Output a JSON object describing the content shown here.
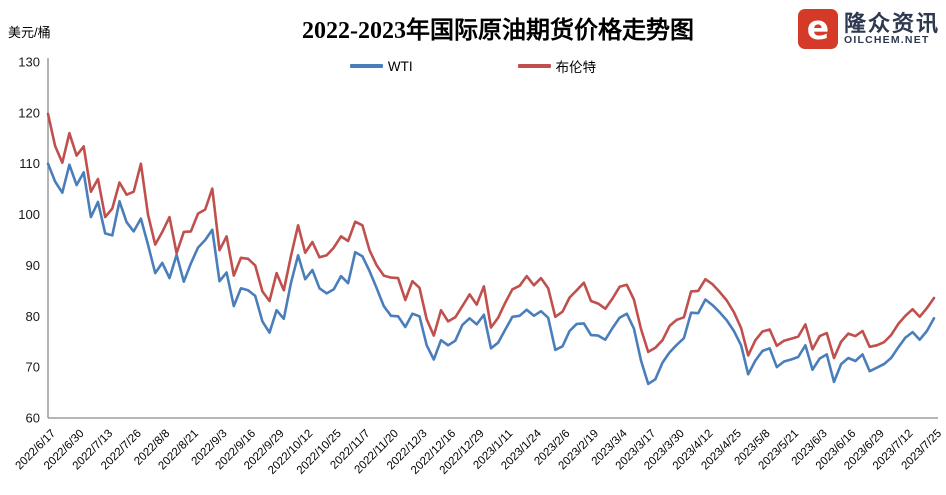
{
  "header": {
    "unit_label": "美元/桶",
    "title": "2022-2023年国际原油期货价格走势图",
    "logo": {
      "icon_glyph": "e",
      "brand": "隆众资讯",
      "domain": "OILCHEM.NET",
      "icon_color": "#d43a27",
      "text_color": "#2e3950"
    }
  },
  "chart_data": {
    "type": "line",
    "title": "2022-2023年国际原油期货价格走势图",
    "xlabel": "",
    "ylabel": "美元/桶",
    "ylim": [
      60,
      130
    ],
    "ytick_step": 10,
    "grid": false,
    "legend_position": "top-center",
    "axis_color": "#8a8a8a",
    "points_per_tick_interval": 4,
    "categories": [
      "2022/6/17",
      "2022/6/30",
      "2022/7/13",
      "2022/7/26",
      "2022/8/8",
      "2022/8/21",
      "2022/9/3",
      "2022/9/16",
      "2022/9/29",
      "2022/10/12",
      "2022/10/25",
      "2022/11/7",
      "2022/11/20",
      "2022/12/3",
      "2022/12/16",
      "2022/12/29",
      "2023/1/11",
      "2023/1/24",
      "2023/2/6",
      "2023/2/19",
      "2023/3/4",
      "2023/3/17",
      "2023/3/30",
      "2023/4/12",
      "2023/4/25",
      "2023/5/8",
      "2023/5/21",
      "2023/6/3",
      "2023/6/16",
      "2023/6/29",
      "2023/7/12",
      "2023/7/25"
    ],
    "series": [
      {
        "name": "WTI",
        "color": "#4a7ebb",
        "values": [
          110.0,
          106.5,
          104.3,
          109.8,
          105.8,
          108.3,
          99.5,
          102.5,
          96.3,
          95.9,
          102.6,
          98.5,
          96.7,
          99.2,
          94.1,
          88.5,
          90.5,
          87.5,
          92.1,
          86.8,
          90.4,
          93.5,
          95.0,
          97.0,
          86.9,
          88.6,
          82.0,
          85.5,
          85.1,
          84.0,
          79.0,
          76.8,
          81.2,
          79.5,
          86.5,
          92.0,
          87.3,
          89.1,
          85.5,
          84.5,
          85.3,
          87.9,
          86.5,
          92.6,
          91.8,
          88.9,
          85.5,
          82.0,
          80.1,
          80.0,
          77.9,
          80.5,
          80.0,
          74.3,
          71.5,
          75.3,
          74.3,
          75.2,
          78.3,
          79.6,
          78.4,
          80.3,
          73.7,
          74.8,
          77.4,
          79.9,
          80.1,
          81.3,
          80.1,
          81.0,
          79.7,
          73.4,
          74.1,
          77.1,
          78.5,
          78.6,
          76.3,
          76.2,
          75.4,
          77.7,
          79.7,
          80.5,
          77.6,
          71.3,
          66.7,
          67.6,
          70.9,
          72.9,
          74.4,
          75.7,
          80.7,
          80.6,
          83.3,
          82.2,
          80.8,
          79.2,
          77.1,
          74.3,
          68.6,
          71.3,
          73.2,
          73.7,
          70.0,
          71.1,
          71.5,
          72.0,
          74.3,
          69.5,
          71.7,
          72.5,
          67.1,
          70.6,
          71.8,
          71.2,
          72.5,
          69.2,
          69.9,
          70.6,
          71.8,
          73.9,
          75.8,
          76.9,
          75.4,
          77.1,
          79.6
        ]
      },
      {
        "name": "布伦特",
        "color": "#c0504d",
        "values": [
          119.8,
          113.5,
          110.2,
          116.0,
          111.6,
          113.4,
          104.5,
          107.0,
          99.5,
          101.2,
          106.3,
          103.9,
          104.5,
          110.0,
          100.0,
          94.1,
          96.6,
          99.5,
          92.4,
          96.6,
          96.7,
          100.2,
          101.0,
          105.1,
          93.0,
          95.7,
          88.0,
          91.5,
          91.3,
          90.0,
          84.9,
          83.0,
          88.5,
          85.1,
          91.8,
          97.9,
          92.5,
          94.6,
          91.6,
          92.0,
          93.5,
          95.7,
          94.8,
          98.6,
          97.9,
          93.0,
          90.0,
          88.0,
          87.6,
          87.5,
          83.2,
          86.9,
          85.6,
          79.4,
          76.2,
          81.2,
          79.0,
          79.8,
          82.0,
          84.3,
          82.3,
          85.9,
          77.8,
          79.7,
          82.7,
          85.3,
          86.0,
          87.9,
          86.1,
          87.5,
          85.5,
          79.9,
          80.9,
          83.7,
          85.1,
          86.6,
          83.0,
          82.5,
          81.5,
          83.5,
          85.8,
          86.2,
          83.3,
          77.5,
          73.0,
          73.8,
          75.3,
          78.1,
          79.3,
          79.8,
          84.9,
          85.0,
          87.3,
          86.3,
          84.8,
          83.1,
          80.8,
          77.7,
          72.3,
          75.3,
          77.0,
          77.4,
          74.2,
          75.2,
          75.6,
          76.0,
          78.4,
          73.5,
          76.1,
          76.7,
          71.8,
          75.0,
          76.6,
          76.1,
          77.1,
          74.0,
          74.3,
          74.9,
          76.3,
          78.5,
          80.1,
          81.4,
          79.9,
          81.6,
          83.6
        ]
      }
    ]
  }
}
